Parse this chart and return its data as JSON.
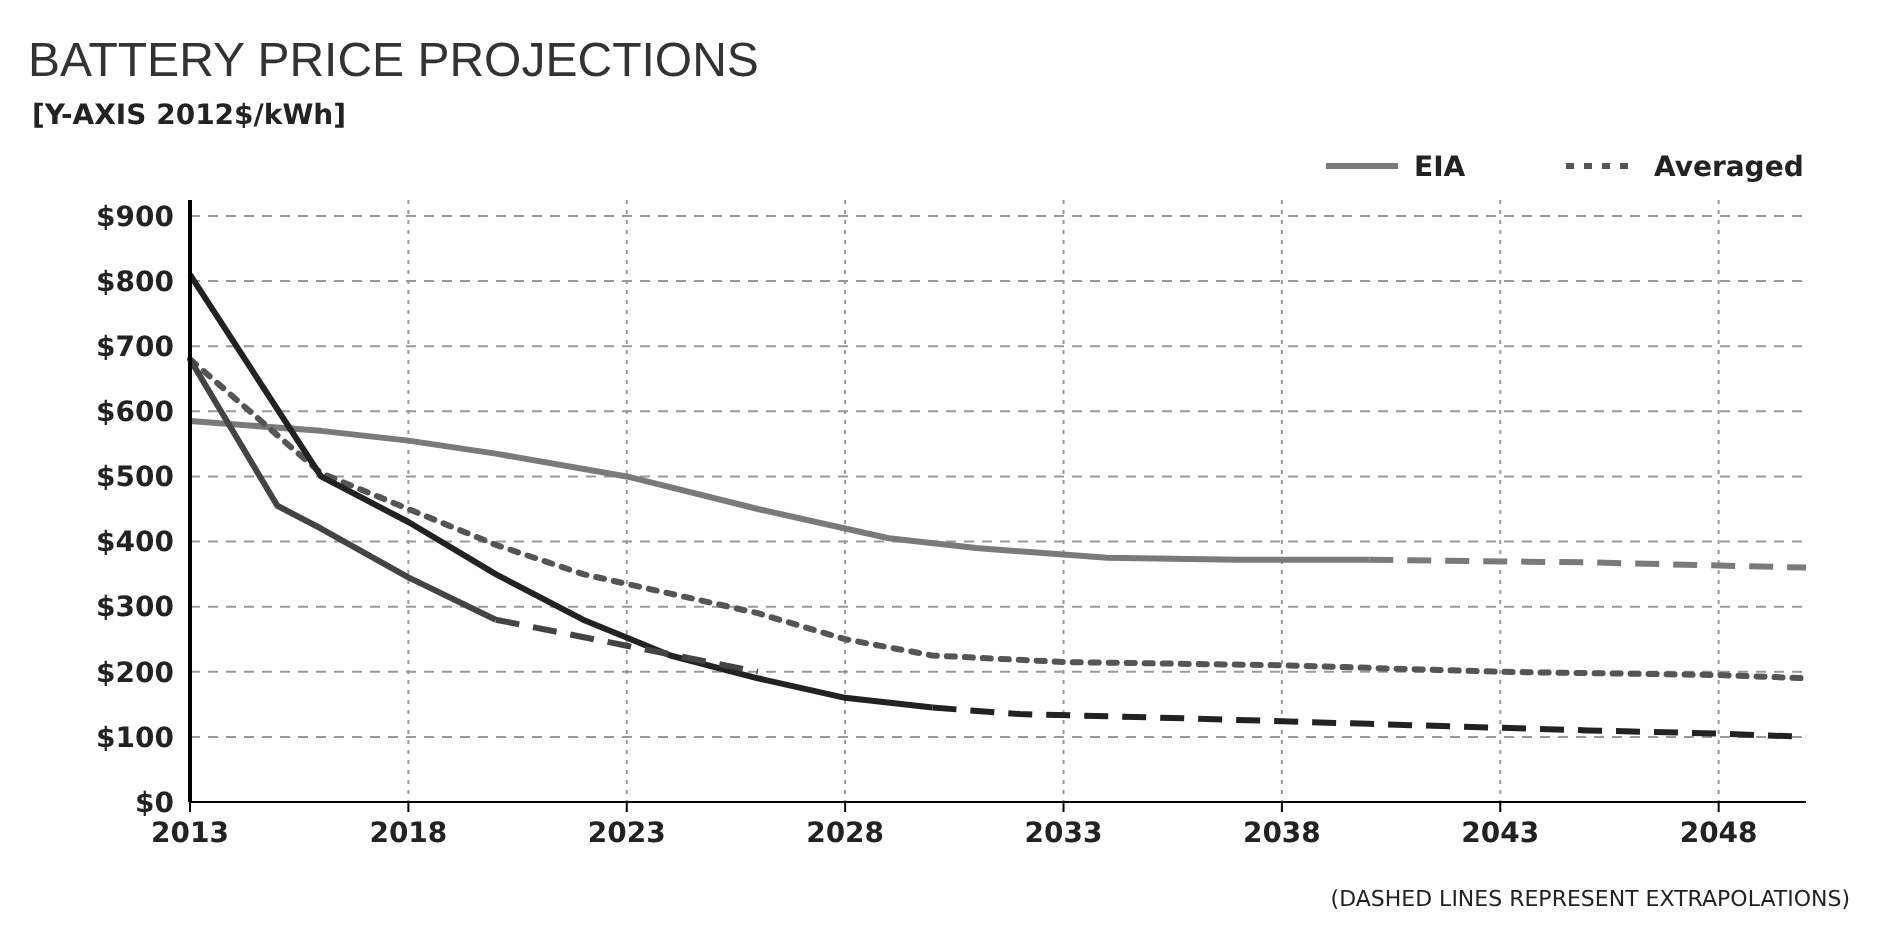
{
  "chart_data": {
    "type": "line",
    "title": "BATTERY PRICE PROJECTIONS",
    "subtitle": "[Y-AXIS 2012$/kWh]",
    "annotations": [
      "(DASHED LINES REPRESENT EXTRAPOLATIONS)"
    ],
    "xlim": [
      2013,
      2050
    ],
    "xticks": [
      2013,
      2018,
      2023,
      2028,
      2033,
      2038,
      2043,
      2048
    ],
    "ylim": [
      0,
      900
    ],
    "yticks": [
      {
        "value": 0,
        "label": "$0"
      },
      {
        "value": 100,
        "label": "$100"
      },
      {
        "value": 200,
        "label": "$200"
      },
      {
        "value": 300,
        "label": "$300"
      },
      {
        "value": 400,
        "label": "$400"
      },
      {
        "value": 500,
        "label": "$500"
      },
      {
        "value": 600,
        "label": "$600"
      },
      {
        "value": 700,
        "label": "$700"
      },
      {
        "value": 800,
        "label": "$800"
      },
      {
        "value": 900,
        "label": "$900"
      }
    ],
    "grid": true,
    "legend": "top right",
    "series": [
      {
        "name": "EIA",
        "color": "#7a7a7a",
        "line_style": "solid",
        "x": [
          2013,
          2016,
          2018,
          2020,
          2023,
          2026,
          2029,
          2031,
          2034,
          2037,
          2040
        ],
        "values": [
          585,
          570,
          555,
          535,
          500,
          450,
          405,
          390,
          375,
          372,
          372
        ]
      },
      {
        "color": "#7a7a7a",
        "line_style": "dashed",
        "x": [
          2040,
          2045,
          2050
        ],
        "values": [
          372,
          368,
          360
        ]
      },
      {
        "name": "Averaged",
        "color": "#555555",
        "line_style": "dotted",
        "x": [
          2013,
          2016,
          2018,
          2020,
          2022,
          2024,
          2026,
          2028,
          2030,
          2033,
          2038,
          2043,
          2048,
          2050
        ],
        "values": [
          680,
          505,
          450,
          395,
          350,
          320,
          290,
          250,
          225,
          215,
          210,
          200,
          195,
          190
        ]
      },
      {
        "color": "#222222",
        "line_style": "solid",
        "x": [
          2013,
          2016,
          2018,
          2020,
          2022,
          2024,
          2026,
          2028,
          2030
        ],
        "values": [
          810,
          500,
          430,
          350,
          280,
          225,
          190,
          160,
          145
        ]
      },
      {
        "color": "#222222",
        "line_style": "dashed",
        "x": [
          2030,
          2032,
          2035,
          2040,
          2045,
          2048,
          2050
        ],
        "values": [
          145,
          135,
          130,
          120,
          110,
          105,
          100
        ]
      },
      {
        "color": "#444444",
        "line_style": "solid",
        "x": [
          2013,
          2015,
          2016,
          2018,
          2020
        ],
        "values": [
          680,
          455,
          420,
          345,
          280
        ]
      },
      {
        "color": "#444444",
        "line_style": "dashed",
        "x": [
          2020,
          2023,
          2026
        ],
        "values": [
          280,
          240,
          200
        ]
      }
    ]
  }
}
